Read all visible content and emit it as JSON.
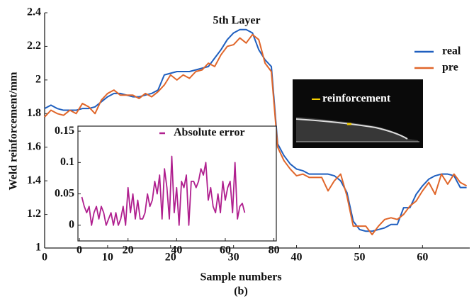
{
  "chart_data": [
    {
      "type": "line",
      "title": "5th Layer",
      "xlabel": "Sample numbers",
      "ylabel": "Weld reinforcement/mm",
      "annotation": "reinforcement",
      "caption": "(b)",
      "x": [
        0,
        1,
        2,
        3,
        4,
        5,
        6,
        7,
        8,
        9,
        10,
        11,
        12,
        13,
        14,
        15,
        16,
        17,
        18,
        19,
        20,
        21,
        22,
        23,
        24,
        25,
        26,
        27,
        28,
        29,
        30,
        31,
        32,
        33,
        34,
        35,
        36,
        37,
        38,
        39,
        40,
        41,
        42,
        43,
        44,
        45,
        46,
        47,
        48,
        49,
        50,
        51,
        52,
        53,
        54,
        55,
        56,
        57,
        58,
        59,
        60,
        61,
        62,
        63,
        64,
        65,
        66,
        67
      ],
      "series": [
        {
          "name": "real",
          "color": "#1f5fbf",
          "values": [
            1.83,
            1.85,
            1.83,
            1.82,
            1.82,
            1.82,
            1.83,
            1.83,
            1.84,
            1.87,
            1.9,
            1.92,
            1.92,
            1.91,
            1.9,
            1.9,
            1.91,
            1.92,
            1.94,
            2.03,
            2.04,
            2.05,
            2.05,
            2.05,
            2.06,
            2.07,
            2.08,
            2.13,
            2.18,
            2.24,
            2.28,
            2.3,
            2.3,
            2.28,
            2.18,
            2.12,
            2.08,
            1.62,
            1.55,
            1.5,
            1.47,
            1.46,
            1.44,
            1.44,
            1.44,
            1.44,
            1.43,
            1.4,
            1.33,
            1.16,
            1.11,
            1.1,
            1.1,
            1.11,
            1.12,
            1.14,
            1.14,
            1.24,
            1.24,
            1.32,
            1.37,
            1.41,
            1.43,
            1.44,
            1.44,
            1.43,
            1.36,
            1.36
          ]
        },
        {
          "name": "pre",
          "color": "#e0662a",
          "values": [
            1.78,
            1.82,
            1.8,
            1.79,
            1.82,
            1.8,
            1.86,
            1.84,
            1.8,
            1.88,
            1.92,
            1.94,
            1.91,
            1.91,
            1.91,
            1.89,
            1.92,
            1.9,
            1.93,
            1.97,
            2.03,
            2.0,
            2.03,
            2.01,
            2.05,
            2.06,
            2.1,
            2.08,
            2.15,
            2.2,
            2.21,
            2.25,
            2.22,
            2.27,
            2.24,
            2.1,
            2.05,
            1.6,
            1.52,
            1.47,
            1.43,
            1.44,
            1.42,
            1.42,
            1.42,
            1.34,
            1.4,
            1.44,
            1.31,
            1.13,
            1.13,
            1.13,
            1.08,
            1.13,
            1.17,
            1.18,
            1.17,
            1.2,
            1.25,
            1.28,
            1.34,
            1.39,
            1.32,
            1.44,
            1.38,
            1.44,
            1.39,
            1.37
          ]
        }
      ],
      "xlim": [
        0,
        67.5
      ],
      "xticks": [
        0,
        10,
        20,
        30,
        40,
        50,
        60
      ],
      "ylim": [
        1,
        2.4
      ],
      "yticks": [
        1,
        1.2,
        1.4,
        1.6,
        1.8,
        2,
        2.2,
        2.4
      ],
      "legend": "upper right"
    },
    {
      "type": "line",
      "x": [
        1,
        2,
        3,
        4,
        5,
        6,
        7,
        8,
        9,
        10,
        11,
        12,
        13,
        14,
        15,
        16,
        17,
        18,
        19,
        20,
        21,
        22,
        23,
        24,
        25,
        26,
        27,
        28,
        29,
        30,
        31,
        32,
        33,
        34,
        35,
        36,
        37,
        38,
        39,
        40,
        41,
        42,
        43,
        44,
        45,
        46,
        47,
        48,
        49,
        50,
        51,
        52,
        53,
        54,
        55,
        56,
        57,
        58,
        59,
        60,
        61,
        62,
        63,
        64,
        65,
        66,
        67,
        68
      ],
      "series": [
        {
          "name": "Absolute error",
          "color": "#b0208f",
          "values": [
            0.045,
            0.03,
            0.02,
            0.03,
            0,
            0.02,
            0.03,
            0.01,
            0.03,
            0.02,
            0,
            0.01,
            0.02,
            0,
            0.02,
            0,
            0.01,
            0.03,
            0,
            0.06,
            0.02,
            0.05,
            0.01,
            0.04,
            0.01,
            0.01,
            0.02,
            0.05,
            0.03,
            0.04,
            0.07,
            0.05,
            0.08,
            0.01,
            0.09,
            0.06,
            0.01,
            0.11,
            0.02,
            0.06,
            0,
            0.07,
            0.06,
            0.08,
            0,
            0.07,
            0.07,
            0.06,
            0.07,
            0.09,
            0.08,
            0.1,
            0.04,
            0.06,
            0.03,
            0.02,
            0.05,
            0.02,
            0.07,
            0.04,
            0.06,
            0.07,
            0.02,
            0.1,
            0.01,
            0.03,
            0.035,
            0.02
          ]
        }
      ],
      "xlim": [
        -0.6,
        81
      ],
      "xticks": [
        0,
        20,
        40,
        60,
        80
      ],
      "ylim": [
        -0.025,
        0.158
      ],
      "yticks": [
        0,
        0.05,
        0.1,
        0.15
      ],
      "legend": "upper center"
    }
  ]
}
